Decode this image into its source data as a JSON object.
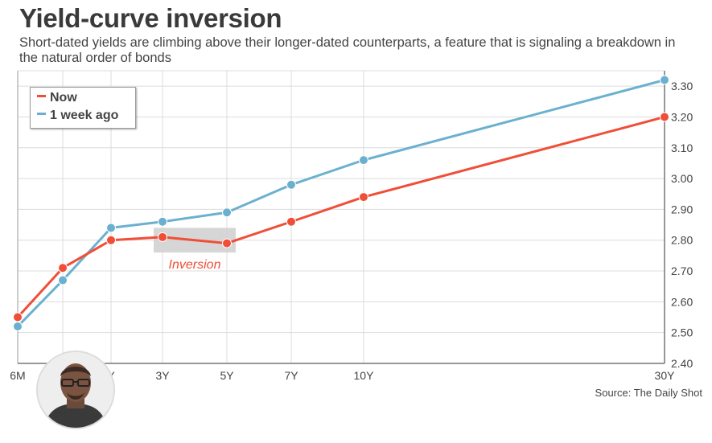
{
  "header": {
    "title": "Yield-curve inversion",
    "subtitle": "Short-dated yields are climbing above their longer-dated counterparts, a feature that is signaling a breakdown in the natural order of bonds"
  },
  "source": "Source: The Daily Shot",
  "colors": {
    "now": "#f04e37",
    "week_ago": "#6bb1cf",
    "grid": "#dcdcdc",
    "highlight": "#cfcfcf"
  },
  "chart_data": {
    "type": "line",
    "title": "Yield-curve inversion",
    "x_categories": [
      "6M",
      "1Y",
      "2Y",
      "3Y",
      "5Y",
      "7Y",
      "10Y",
      "30Y"
    ],
    "x_tick_labels": [
      "6M",
      "",
      "Y",
      "3Y",
      "5Y",
      "7Y",
      "10Y",
      "30Y"
    ],
    "x_maturity_years": [
      0.5,
      1,
      2,
      3,
      5,
      7,
      10,
      30
    ],
    "series": [
      {
        "name": "Now",
        "color": "#f04e37",
        "values": [
          2.55,
          2.71,
          2.8,
          2.81,
          2.79,
          2.86,
          2.94,
          3.2
        ]
      },
      {
        "name": "1 week ago",
        "color": "#6bb1cf",
        "values": [
          2.52,
          2.67,
          2.84,
          2.86,
          2.89,
          2.98,
          3.06,
          3.32
        ]
      }
    ],
    "ylim": [
      2.4,
      3.35
    ],
    "y_ticks": [
      "2.40",
      "2.50",
      "2.60",
      "2.70",
      "2.80",
      "2.90",
      "3.00",
      "3.10",
      "3.20",
      "3.30"
    ],
    "y_axis_side": "right",
    "grid": true,
    "legend_position": "top-left",
    "annotation": {
      "text": "Inversion",
      "x_from": "3Y",
      "x_to": "5Y"
    }
  }
}
